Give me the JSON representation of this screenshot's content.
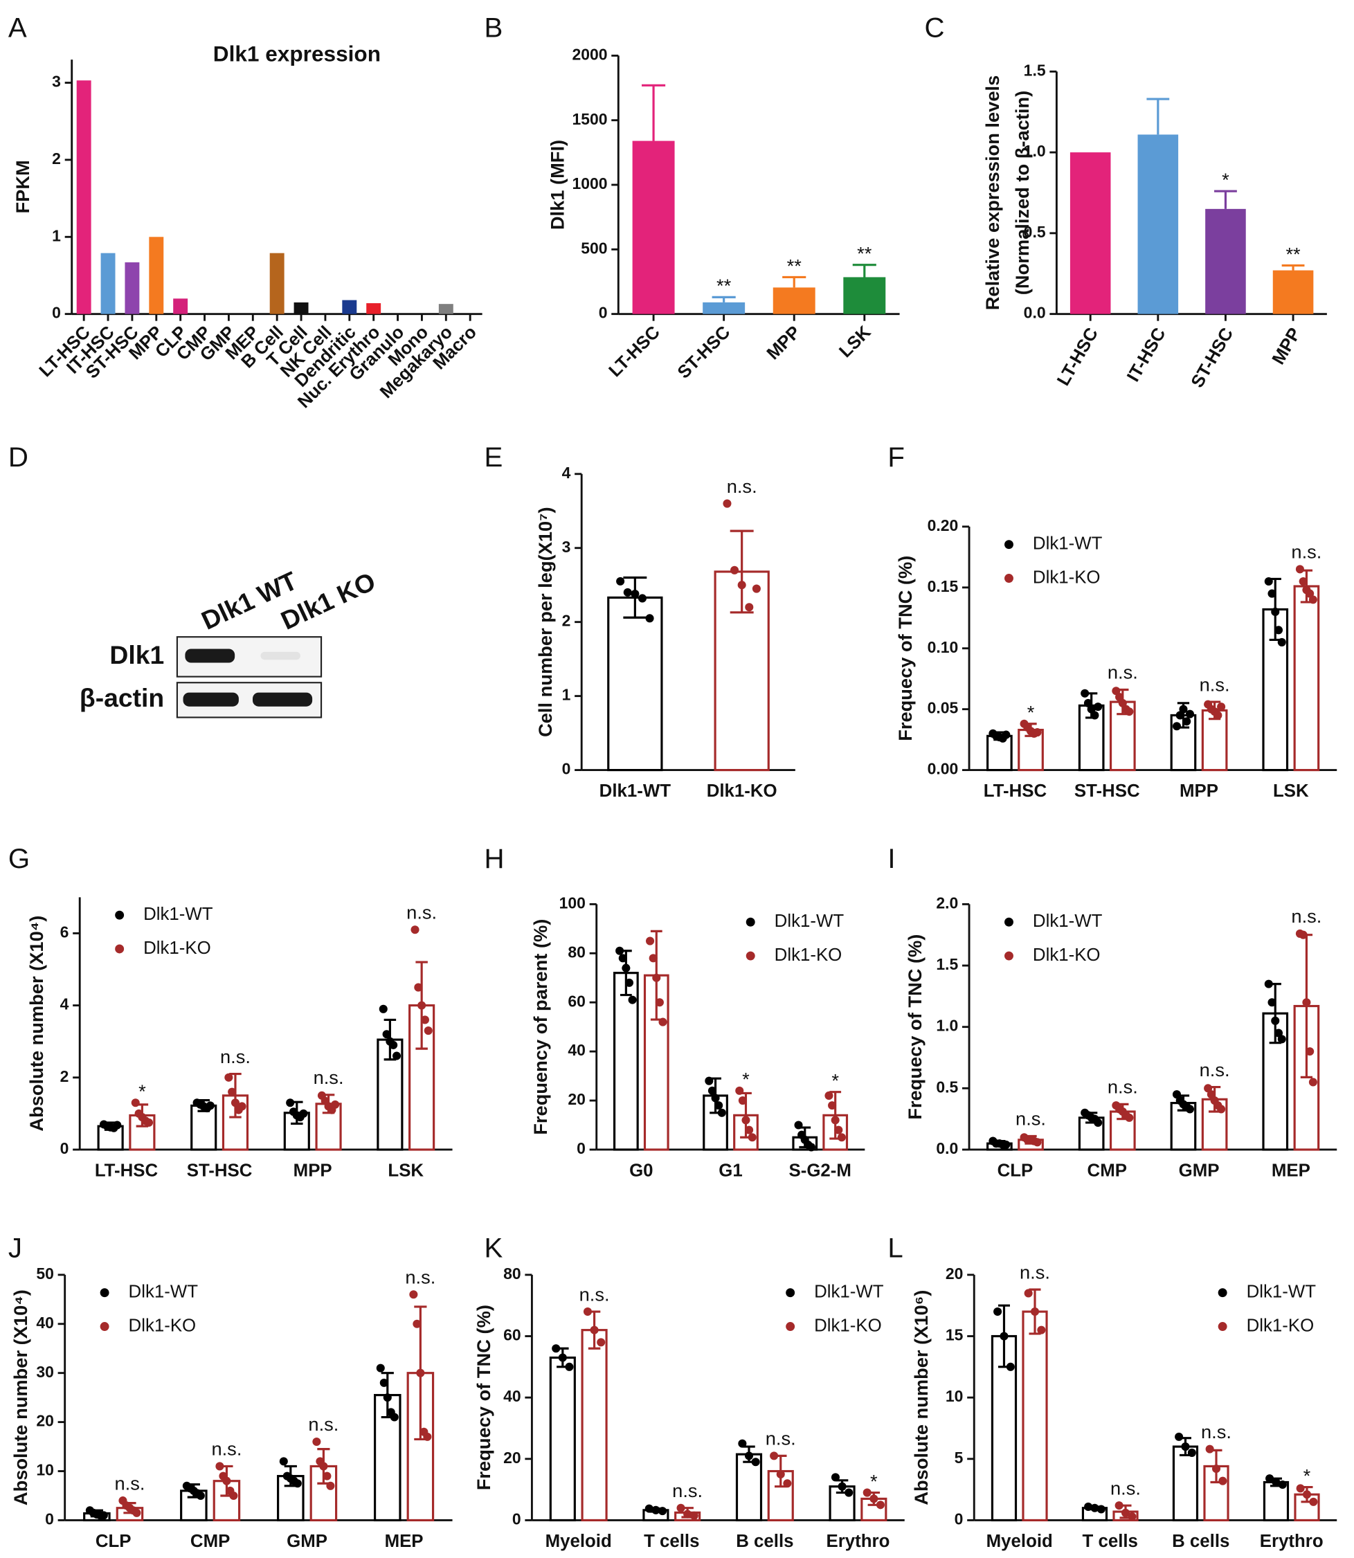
{
  "chart_data": [
    {
      "panel": "A",
      "type": "bar",
      "title": "Dlk1 expression",
      "ylabel": "FPKM",
      "categories": [
        "LT-HSC",
        "IT-HSC",
        "ST-HSC",
        "MPP",
        "CLP",
        "CMP",
        "GMP",
        "MEP",
        "B Cell",
        "T Cell",
        "NK Cell",
        "Dendritic",
        "Nuc. Erythro",
        "Granulo",
        "Mono",
        "Megakaryo",
        "Macro"
      ],
      "values": [
        3.03,
        0.79,
        0.67,
        1.0,
        0.2,
        0,
        0,
        0,
        0.79,
        0.15,
        0,
        0.18,
        0.14,
        0,
        0,
        0.13,
        0
      ],
      "colors": [
        "#e3237a",
        "#5b9bd5",
        "#8e44ad",
        "#f47a20",
        "#d4217a",
        "#e3237a",
        "#e3237a",
        "#e3237a",
        "#b5651d",
        "#111111",
        "#111111",
        "#1a3a8f",
        "#e8202a",
        "#111111",
        "#111111",
        "#7f7f7f",
        "#111111"
      ],
      "bar_style": "solid",
      "ylim": [
        0,
        3.3
      ],
      "yticks": [
        0,
        1,
        2,
        3
      ]
    },
    {
      "panel": "B",
      "type": "bar",
      "ylabel": "Dlk1 (MFI)",
      "categories": [
        "LT-HSC",
        "ST-HSC",
        "MPP",
        "LSK"
      ],
      "values": [
        1340,
        90,
        205,
        285
      ],
      "errors": [
        430,
        40,
        80,
        95
      ],
      "colors": [
        "#e3237a",
        "#5b9bd5",
        "#f47a20",
        "#1e8c3a"
      ],
      "bar_style": "solid",
      "annotations": [
        null,
        "**",
        "**",
        "**"
      ],
      "ylim": [
        0,
        2000
      ],
      "yticks": [
        0,
        500,
        1000,
        1500,
        2000
      ]
    },
    {
      "panel": "C",
      "type": "bar",
      "ylabel": [
        "Relative expression levels",
        "(Normalized to β-actin)"
      ],
      "categories": [
        "LT-HSC",
        "IT-HSC",
        "ST-HSC",
        "MPP"
      ],
      "values": [
        1.0,
        1.11,
        0.65,
        0.27
      ],
      "errors": [
        null,
        0.22,
        0.11,
        0.03
      ],
      "colors": [
        "#e3237a",
        "#5b9bd5",
        "#7b3f9e",
        "#f47a20"
      ],
      "bar_style": "solid",
      "annotations": [
        null,
        null,
        "*",
        "**"
      ],
      "ylim": [
        0,
        1.5
      ],
      "yticks": [
        {
          "value": 0,
          "label": "0.0"
        },
        0.5,
        {
          "value": 1,
          "label": "1.0"
        },
        1.5
      ]
    },
    {
      "panel": "D",
      "type": "blot",
      "lanes": [
        "Dlk1 WT",
        "Dlk1 KO"
      ],
      "rows": [
        "Dlk1",
        "β-actin"
      ]
    },
    {
      "panel": "E",
      "type": "bar",
      "ylabel": "Cell number per leg(X10⁷)",
      "categories": [
        "Dlk1-WT",
        "Dlk1-KO"
      ],
      "values": [
        2.33,
        2.68
      ],
      "errors": [
        0.27,
        0.55
      ],
      "points": [
        [
          2.55,
          2.4,
          2.38,
          2.32,
          2.05
        ],
        [
          3.6,
          2.7,
          2.5,
          2.2,
          2.45
        ]
      ],
      "colors": [
        "#000000",
        "#a52a2a"
      ],
      "bar_style": "outline",
      "annotations": [
        null,
        "n.s."
      ],
      "ylim": [
        0,
        4
      ],
      "yticks": [
        0,
        1,
        2,
        3,
        4
      ]
    },
    {
      "panel": "F",
      "type": "bar",
      "ylabel": "Frequecy of TNC (%)",
      "legend": "upper left",
      "categories": [
        "LT-HSC",
        "ST-HSC",
        "MPP",
        "LSK"
      ],
      "series": [
        {
          "name": "Dlk1-WT",
          "color": "#000000",
          "values": [
            0.028,
            0.053,
            0.045,
            0.132
          ],
          "errors": [
            0.003,
            0.01,
            0.01,
            0.025
          ],
          "points": [
            [
              0.03,
              0.028,
              0.027,
              0.026,
              0.029
            ],
            [
              0.063,
              0.055,
              0.05,
              0.045,
              0.052
            ],
            [
              0.036,
              0.045,
              0.05,
              0.04,
              0.046
            ],
            [
              0.155,
              0.145,
              0.13,
              0.115,
              0.105
            ]
          ]
        },
        {
          "name": "Dlk1-KO",
          "color": "#a52a2a",
          "values": [
            0.033,
            0.056,
            0.049,
            0.151
          ],
          "errors": [
            0.005,
            0.01,
            0.007,
            0.013
          ],
          "points": [
            [
              0.038,
              0.035,
              0.032,
              0.03,
              0.031
            ],
            [
              0.065,
              0.06,
              0.055,
              0.05,
              0.048
            ],
            [
              0.054,
              0.05,
              0.048,
              0.045,
              0.052
            ],
            [
              0.165,
              0.155,
              0.148,
              0.145,
              0.14
            ]
          ]
        }
      ],
      "annotations": [
        "*",
        "n.s.",
        "n.s.",
        "n.s."
      ],
      "ylim": [
        0,
        0.2
      ],
      "yticks": [
        {
          "value": 0,
          "label": "0.00"
        },
        0.05,
        {
          "value": 0.1,
          "label": "0.10"
        },
        0.15,
        {
          "value": 0.2,
          "label": "0.20"
        }
      ]
    },
    {
      "panel": "G",
      "type": "bar",
      "ylabel": "Absolute number (X10⁴)",
      "legend": "upper left",
      "categories": [
        "LT-HSC",
        "ST-HSC",
        "MPP",
        "LSK"
      ],
      "series": [
        {
          "name": "Dlk1-WT",
          "color": "#000000",
          "values": [
            0.65,
            1.22,
            1.02,
            3.05
          ],
          "errors": [
            0.1,
            0.15,
            0.3,
            0.55
          ],
          "points": [
            [
              0.7,
              0.65,
              0.62,
              0.6,
              0.68
            ],
            [
              1.3,
              1.25,
              1.2,
              1.15,
              1.22
            ],
            [
              1.3,
              1.05,
              0.95,
              0.9,
              1.0
            ],
            [
              3.9,
              3.2,
              3.0,
              2.9,
              2.6
            ]
          ]
        },
        {
          "name": "Dlk1-KO",
          "color": "#a52a2a",
          "values": [
            0.95,
            1.5,
            1.27,
            4.0
          ],
          "errors": [
            0.3,
            0.6,
            0.25,
            1.2
          ],
          "points": [
            [
              1.3,
              1.0,
              0.9,
              0.8,
              0.75
            ],
            [
              2.0,
              1.6,
              1.3,
              1.1,
              1.2
            ],
            [
              1.5,
              1.35,
              1.2,
              1.1,
              1.25
            ],
            [
              6.1,
              4.5,
              4.0,
              3.6,
              3.3
            ]
          ]
        }
      ],
      "annotations": [
        "*",
        "n.s.",
        "n.s.",
        "n.s."
      ],
      "ylim": [
        0,
        7
      ],
      "yticks": [
        0,
        2,
        4,
        6
      ]
    },
    {
      "panel": "H",
      "type": "bar",
      "ylabel": "Frequency of parent (%)",
      "legend": "upper right",
      "categories": [
        "G0",
        "G1",
        "S-G2-M"
      ],
      "series": [
        {
          "name": "Dlk1-WT",
          "color": "#000000",
          "values": [
            72,
            22,
            5
          ],
          "errors": [
            9,
            7,
            4
          ],
          "points": [
            [
              81,
              78,
              74,
              68,
              61
            ],
            [
              28,
              24,
              21,
              18,
              15
            ],
            [
              10,
              6,
              4,
              2,
              1
            ]
          ]
        },
        {
          "name": "Dlk1-KO",
          "color": "#a52a2a",
          "values": [
            71,
            14,
            14
          ],
          "errors": [
            18,
            9,
            9.5
          ],
          "points": [
            [
              85,
              78,
              70,
              60,
              52
            ],
            [
              24,
              20,
              12,
              8,
              5
            ],
            [
              22,
              18,
              12,
              8,
              5
            ]
          ]
        }
      ],
      "annotations": [
        null,
        "*",
        "*"
      ],
      "ylim": [
        0,
        100
      ],
      "yticks": [
        0,
        20,
        40,
        60,
        80,
        100
      ]
    },
    {
      "panel": "I",
      "type": "bar",
      "ylabel": "Frequecy of TNC (%)",
      "legend": "upper left",
      "categories": [
        "CLP",
        "CMP",
        "GMP",
        "MEP"
      ],
      "series": [
        {
          "name": "Dlk1-WT",
          "color": "#000000",
          "values": [
            0.05,
            0.26,
            0.38,
            1.11
          ],
          "errors": [
            0.02,
            0.04,
            0.06,
            0.24
          ],
          "points": [
            [
              0.07,
              0.05,
              0.05,
              0.04,
              0.04
            ],
            [
              0.3,
              0.28,
              0.26,
              0.25,
              0.22
            ],
            [
              0.45,
              0.4,
              0.37,
              0.35,
              0.33
            ],
            [
              1.35,
              1.2,
              1.05,
              0.95,
              0.9
            ]
          ]
        },
        {
          "name": "Dlk1-KO",
          "color": "#a52a2a",
          "values": [
            0.08,
            0.31,
            0.41,
            1.17
          ],
          "errors": [
            0.03,
            0.06,
            0.1,
            0.58
          ],
          "points": [
            [
              0.1,
              0.08,
              0.08,
              0.07,
              0.06
            ],
            [
              0.36,
              0.33,
              0.31,
              0.28,
              0.26
            ],
            [
              0.5,
              0.45,
              0.4,
              0.36,
              0.33
            ],
            [
              1.76,
              1.75,
              1.2,
              0.8,
              0.55
            ]
          ]
        }
      ],
      "annotations": [
        "n.s.",
        "n.s.",
        "n.s.",
        "n.s."
      ],
      "ylim": [
        0,
        2
      ],
      "yticks": [
        {
          "value": 0,
          "label": "0.0"
        },
        0.5,
        {
          "value": 1,
          "label": "1.0"
        },
        1.5,
        {
          "value": 2,
          "label": "2.0"
        }
      ]
    },
    {
      "panel": "J",
      "type": "bar",
      "ylabel": "Absolute number (X10⁴)",
      "legend": "upper left",
      "categories": [
        "CLP",
        "CMP",
        "GMP",
        "MEP"
      ],
      "series": [
        {
          "name": "Dlk1-WT",
          "color": "#000000",
          "values": [
            1.4,
            6,
            9,
            25.5
          ],
          "errors": [
            0.6,
            1.3,
            2,
            4.5
          ],
          "points": [
            [
              2,
              1.5,
              1.2,
              1,
              1
            ],
            [
              7,
              6.5,
              6,
              5.5,
              5
            ],
            [
              12,
              9,
              8.5,
              8,
              7.5
            ],
            [
              31,
              28,
              25,
              22,
              21
            ]
          ]
        },
        {
          "name": "Dlk1-KO",
          "color": "#a52a2a",
          "values": [
            2.5,
            8,
            11,
            30
          ],
          "errors": [
            1,
            3,
            3.5,
            13.5
          ],
          "points": [
            [
              4,
              3,
              2.5,
              2,
              1.5
            ],
            [
              11,
              9,
              8,
              6,
              5
            ],
            [
              16,
              12,
              11,
              9,
              7
            ],
            [
              46,
              40,
              30,
              18,
              17
            ]
          ]
        }
      ],
      "annotations": [
        "n.s.",
        "n.s.",
        "n.s.",
        "n.s."
      ],
      "ylim": [
        0,
        50
      ],
      "yticks": [
        0,
        10,
        20,
        30,
        40,
        50
      ]
    },
    {
      "panel": "K",
      "type": "bar",
      "ylabel": "Frequecy of TNC (%)",
      "legend": "upper right",
      "categories": [
        "Myeloid",
        "T cells",
        "B cells",
        "Erythro"
      ],
      "series": [
        {
          "name": "Dlk1-WT",
          "color": "#000000",
          "values": [
            53,
            3.3,
            21.5,
            11
          ],
          "errors": [
            3,
            0.5,
            2.5,
            2
          ],
          "points": [
            [
              56,
              53,
              50
            ],
            [
              3.8,
              3.3,
              3
            ],
            [
              25,
              21,
              19
            ],
            [
              14,
              11,
              9
            ]
          ]
        },
        {
          "name": "Dlk1-KO",
          "color": "#a52a2a",
          "values": [
            62,
            2.5,
            16,
            7
          ],
          "errors": [
            6,
            1.5,
            5,
            2
          ],
          "points": [
            [
              68,
              62,
              58
            ],
            [
              4,
              2,
              1.5
            ],
            [
              21,
              15,
              12
            ],
            [
              9,
              7,
              5
            ]
          ]
        }
      ],
      "annotations": [
        "n.s.",
        "n.s.",
        "n.s.",
        "*"
      ],
      "ylim": [
        0,
        80
      ],
      "yticks": [
        0,
        20,
        40,
        60,
        80
      ]
    },
    {
      "panel": "L",
      "type": "bar",
      "ylabel": "Absolute number (X10⁶)",
      "legend": "upper right",
      "categories": [
        "Myeloid",
        "T cells",
        "B cells",
        "Erythro"
      ],
      "series": [
        {
          "name": "Dlk1-WT",
          "color": "#000000",
          "values": [
            15,
            1,
            6,
            3.1
          ],
          "errors": [
            2.5,
            0.1,
            0.7,
            0.3
          ],
          "points": [
            [
              17,
              15,
              12.5
            ],
            [
              1.1,
              1,
              0.9
            ],
            [
              6.8,
              6,
              5.5
            ],
            [
              3.4,
              3.1,
              2.9
            ]
          ]
        },
        {
          "name": "Dlk1-KO",
          "color": "#a52a2a",
          "values": [
            17,
            0.7,
            4.4,
            2.1
          ],
          "errors": [
            1.8,
            0.5,
            1.3,
            0.6
          ],
          "points": [
            [
              18.5,
              17,
              15.5
            ],
            [
              1.2,
              0.6,
              0.3
            ],
            [
              5.8,
              4.2,
              3.2
            ],
            [
              2.6,
              2.1,
              1.5
            ]
          ]
        }
      ],
      "annotations": [
        "n.s.",
        "n.s.",
        "n.s.",
        "*"
      ],
      "ylim": [
        0,
        20
      ],
      "yticks": [
        0,
        5,
        10,
        15,
        20
      ]
    }
  ]
}
